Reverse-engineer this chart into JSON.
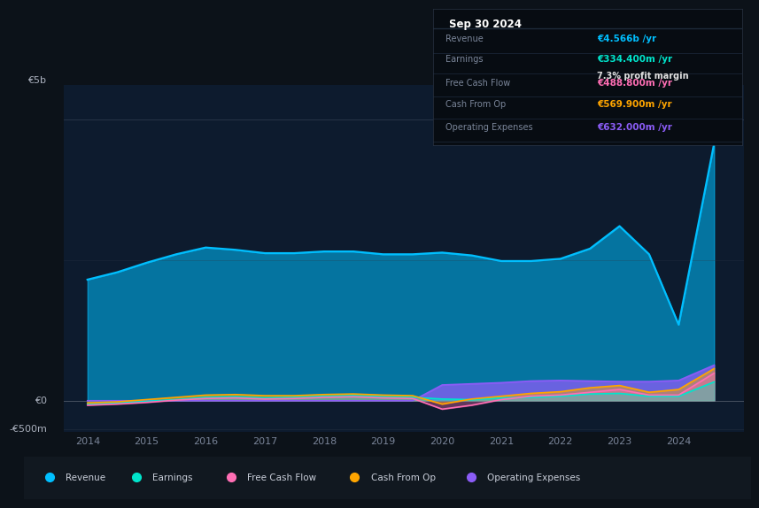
{
  "bg_color": "#0c1219",
  "plot_bg_color": "#0d1b2e",
  "title": "Sep 30 2024",
  "ylabel_top": "€5b",
  "ylabel_zero": "€0",
  "ylabel_neg": "-€500m",
  "years": [
    2014.0,
    2014.5,
    2015.0,
    2015.5,
    2016.0,
    2016.5,
    2017.0,
    2017.5,
    2018.0,
    2018.5,
    2019.0,
    2019.5,
    2020.0,
    2020.5,
    2021.0,
    2021.5,
    2022.0,
    2022.5,
    2023.0,
    2023.5,
    2024.0,
    2024.6
  ],
  "revenue": [
    2150,
    2280,
    2450,
    2600,
    2720,
    2680,
    2620,
    2620,
    2650,
    2650,
    2600,
    2600,
    2630,
    2580,
    2480,
    2480,
    2520,
    2700,
    3100,
    2600,
    1350,
    4566
  ],
  "earnings": [
    -60,
    -40,
    -10,
    20,
    60,
    70,
    50,
    60,
    80,
    90,
    70,
    60,
    30,
    20,
    50,
    60,
    80,
    120,
    130,
    80,
    80,
    334
  ],
  "free_cash_flow": [
    -80,
    -60,
    -30,
    10,
    40,
    50,
    30,
    40,
    60,
    70,
    50,
    40,
    -150,
    -80,
    20,
    80,
    100,
    150,
    200,
    100,
    100,
    489
  ],
  "cash_from_op": [
    -40,
    -20,
    20,
    60,
    100,
    110,
    90,
    90,
    110,
    120,
    100,
    90,
    -60,
    30,
    80,
    130,
    160,
    230,
    270,
    150,
    200,
    570
  ],
  "operating_expenses": [
    0,
    0,
    0,
    0,
    0,
    0,
    0,
    0,
    0,
    0,
    0,
    0,
    280,
    300,
    320,
    350,
    360,
    350,
    340,
    340,
    360,
    632
  ],
  "revenue_color": "#00bfff",
  "earnings_color": "#00e5cc",
  "fcf_color": "#ff6eb4",
  "cfo_color": "#ffa500",
  "opex_color": "#8b5cf6",
  "legend_labels": [
    "Revenue",
    "Earnings",
    "Free Cash Flow",
    "Cash From Op",
    "Operating Expenses"
  ],
  "xlim": [
    2013.6,
    2025.1
  ],
  "ylim": [
    -560,
    5600
  ],
  "xticks": [
    2014,
    2015,
    2016,
    2017,
    2018,
    2019,
    2020,
    2021,
    2022,
    2023,
    2024
  ],
  "box_rows": [
    {
      "label": "Revenue",
      "value": "€4.566b /yr",
      "color": "#00bfff",
      "extra": null
    },
    {
      "label": "Earnings",
      "value": "€334.400m /yr",
      "color": "#00e5cc",
      "extra": "7.3% profit margin"
    },
    {
      "label": "Free Cash Flow",
      "value": "€488.800m /yr",
      "color": "#ff6eb4",
      "extra": null
    },
    {
      "label": "Cash From Op",
      "value": "€569.900m /yr",
      "color": "#ffa500",
      "extra": null
    },
    {
      "label": "Operating Expenses",
      "value": "€632.000m /yr",
      "color": "#8b5cf6",
      "extra": null
    }
  ]
}
